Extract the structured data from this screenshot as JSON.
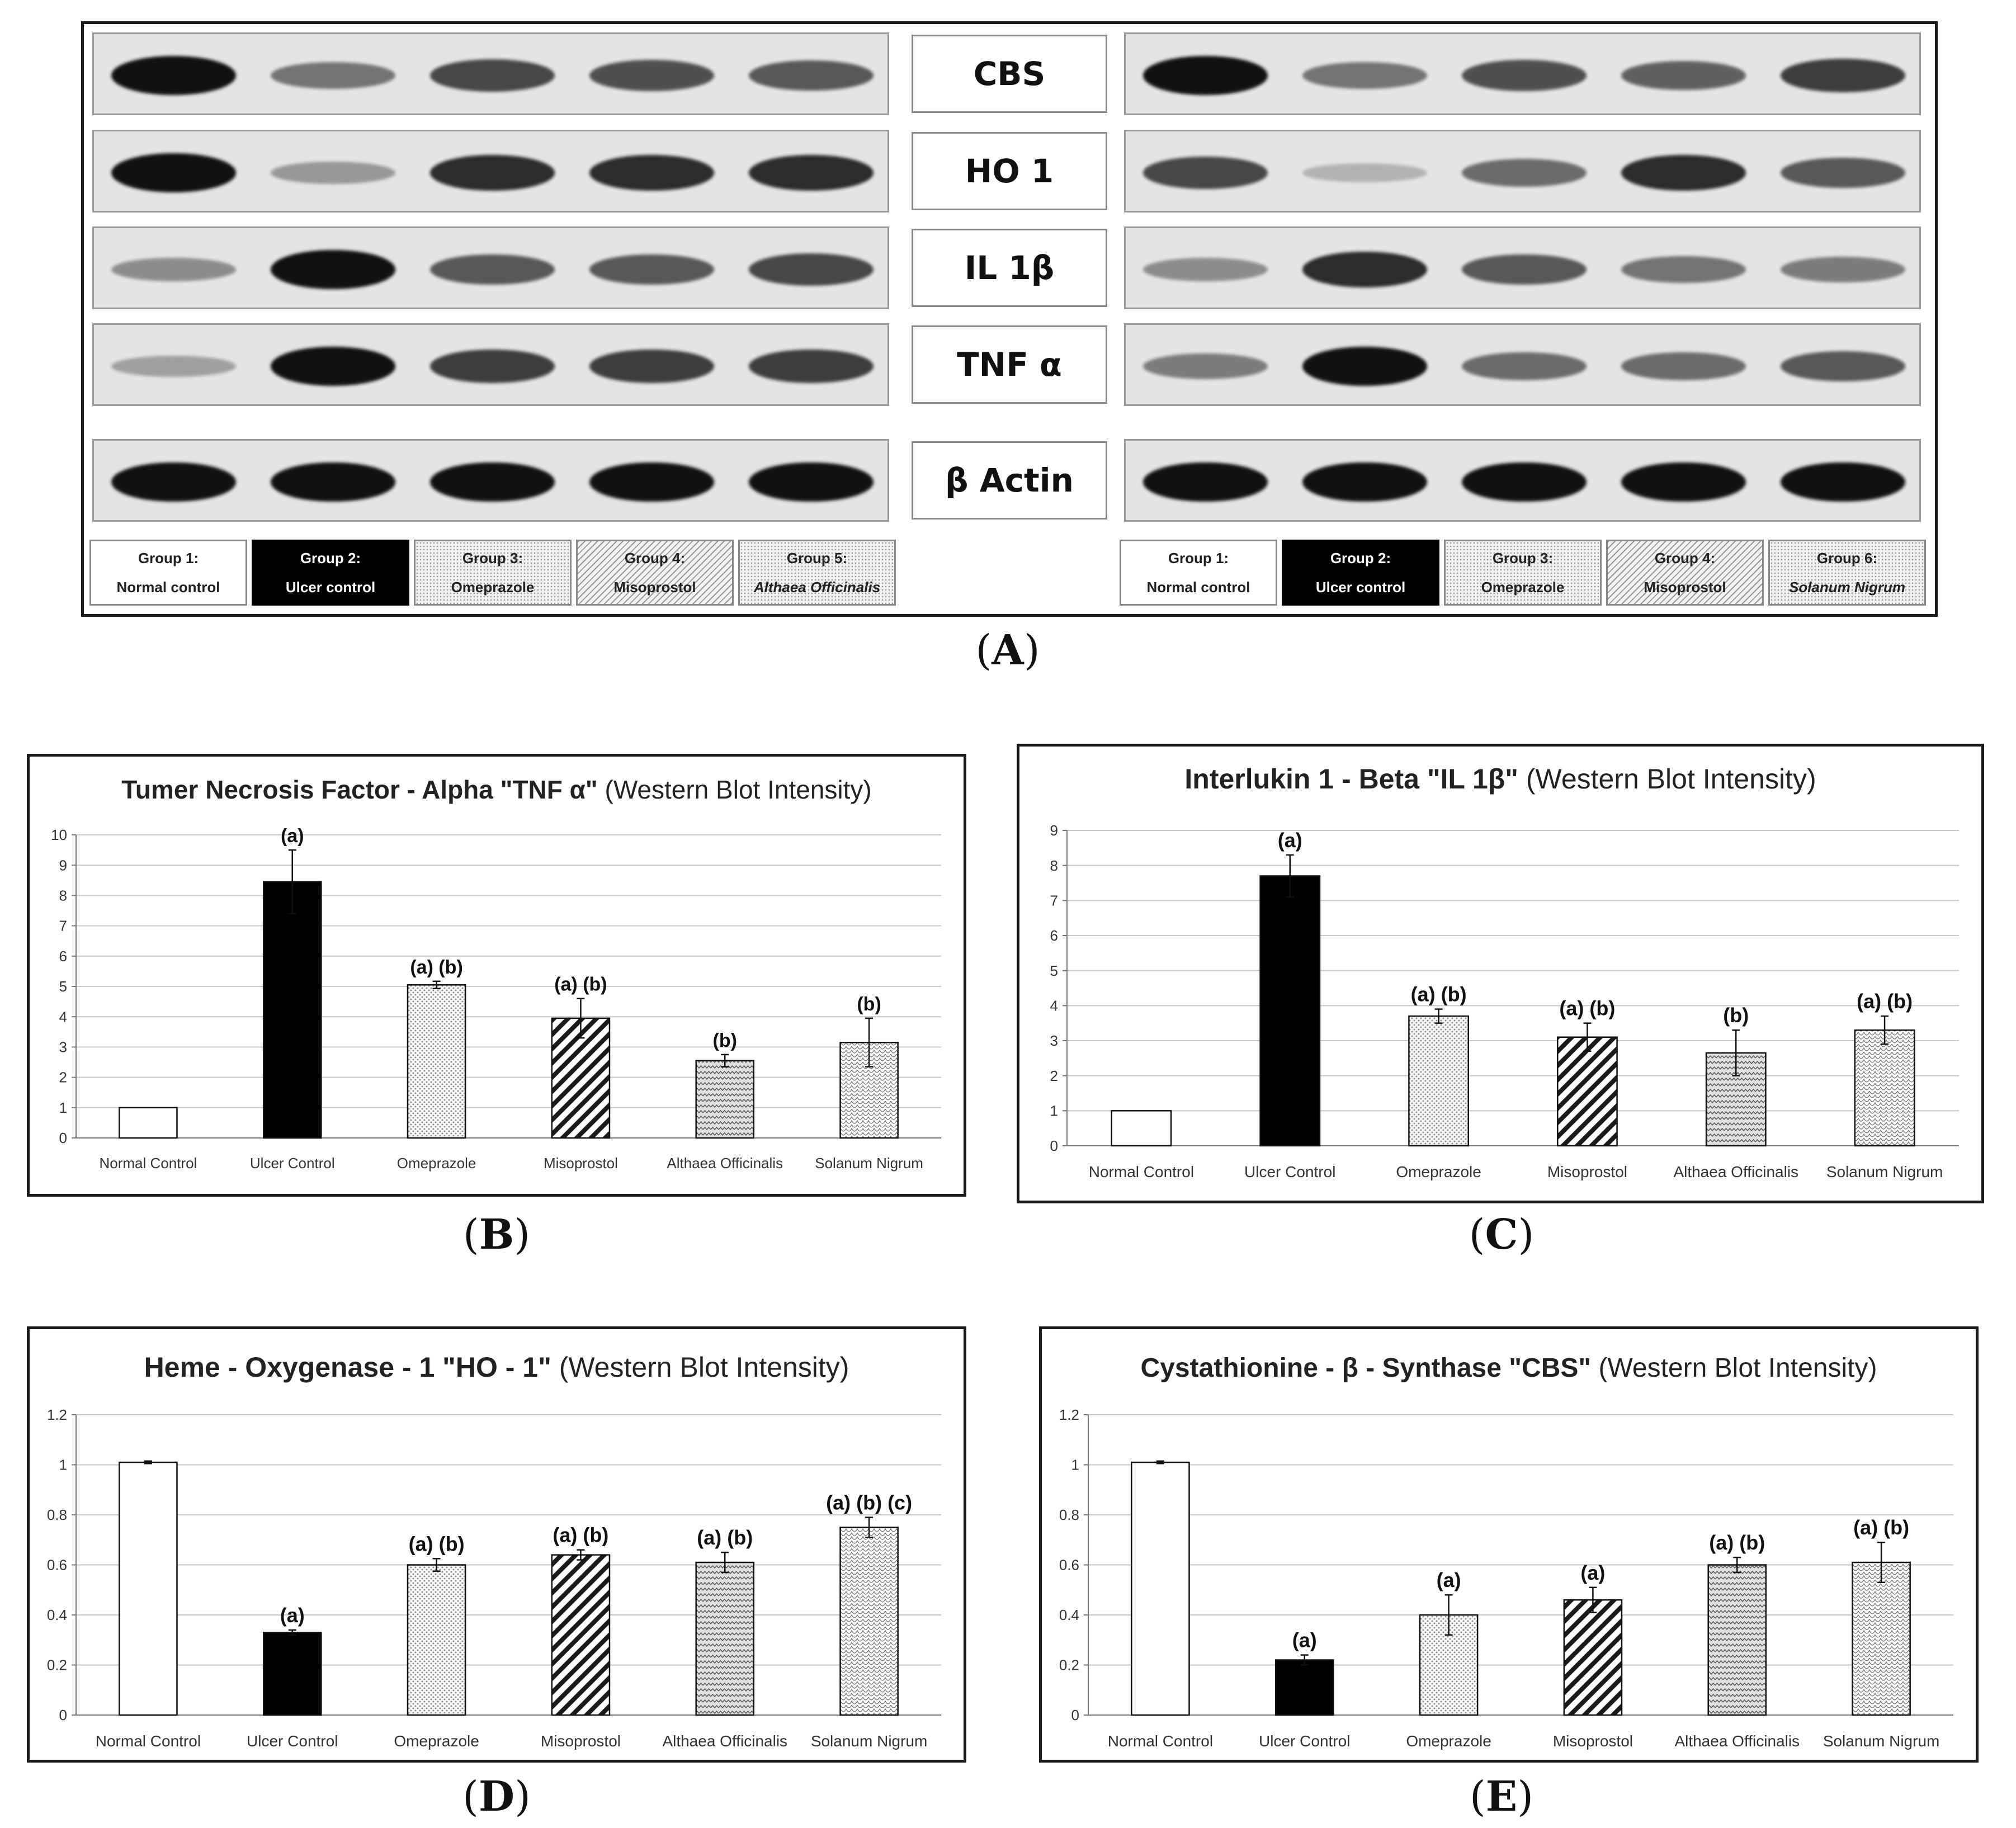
{
  "panel_a": {
    "caption": "A",
    "proteins": [
      "CBS",
      "HO 1",
      "IL 1β",
      "TNF α",
      "β Actin"
    ],
    "left_groups": [
      {
        "line1": "Group 1:",
        "line2": "Normal control",
        "style": "light"
      },
      {
        "line1": "Group 2:",
        "line2": "Ulcer control",
        "style": "dark"
      },
      {
        "line1": "Group 3:",
        "line2": "Omeprazole",
        "style": "dot"
      },
      {
        "line1": "Group 4:",
        "line2": "Misoprostol",
        "style": "diag"
      },
      {
        "line1": "Group 5:",
        "line2": "Althaea Officinalis",
        "style": "dot",
        "italic": true
      }
    ],
    "right_groups": [
      {
        "line1": "Group 1:",
        "line2": "Normal control",
        "style": "light"
      },
      {
        "line1": "Group 2:",
        "line2": "Ulcer control",
        "style": "dark"
      },
      {
        "line1": "Group 3:",
        "line2": "Omeprazole",
        "style": "dot"
      },
      {
        "line1": "Group 4:",
        "line2": "Misoprostol",
        "style": "diag"
      },
      {
        "line1": "Group 6:",
        "line2": "Solanum Nigrum",
        "style": "dot",
        "italic": true
      }
    ],
    "band_intensity_left": [
      [
        1.0,
        0.45,
        0.7,
        0.65,
        0.6
      ],
      [
        1.0,
        0.25,
        0.85,
        0.85,
        0.85
      ],
      [
        0.3,
        1.0,
        0.6,
        0.6,
        0.7
      ],
      [
        0.2,
        1.0,
        0.75,
        0.75,
        0.75
      ],
      [
        1.0,
        1.0,
        1.0,
        1.0,
        1.0
      ]
    ],
    "band_intensity_right": [
      [
        1.0,
        0.45,
        0.65,
        0.55,
        0.75
      ],
      [
        0.7,
        0.1,
        0.5,
        0.85,
        0.6
      ],
      [
        0.3,
        0.85,
        0.6,
        0.45,
        0.4
      ],
      [
        0.4,
        1.0,
        0.5,
        0.5,
        0.6
      ],
      [
        1.0,
        1.0,
        1.0,
        1.0,
        1.0
      ]
    ]
  },
  "chart_data": [
    {
      "panel": "B",
      "type": "bar",
      "title": "Tumer Necrosis Factor - Alpha \"TNF α\"",
      "title_suffix": "(Western Blot Intensity)",
      "categories": [
        "Normal Control",
        "Ulcer Control",
        "Omeprazole",
        "Misoprostol",
        "Althaea Officinalis",
        "Solanum Nigrum"
      ],
      "values": [
        1.0,
        8.45,
        5.05,
        3.95,
        2.55,
        3.15
      ],
      "errors": [
        0,
        1.05,
        0.12,
        0.65,
        0.2,
        0.8
      ],
      "annotations": [
        "",
        "(a)",
        "(a) (b)",
        "(a) (b)",
        "(b)",
        "(b)"
      ],
      "ylim": [
        0,
        10
      ],
      "yticks": [
        "0",
        "1",
        "2",
        "3",
        "4",
        "5",
        "6",
        "7",
        "8",
        "9",
        "10"
      ],
      "xlabel": "",
      "ylabel": "",
      "grid": true
    },
    {
      "panel": "C",
      "type": "bar",
      "title": "Interlukin 1 - Beta \"IL 1β\"",
      "title_suffix": "(Western Blot Intensity)",
      "categories": [
        "Normal Control",
        "Ulcer Control",
        "Omeprazole",
        "Misoprostol",
        "Althaea Officinalis",
        "Solanum Nigrum"
      ],
      "values": [
        1.0,
        7.7,
        3.7,
        3.1,
        2.65,
        3.3
      ],
      "errors": [
        0,
        0.6,
        0.2,
        0.4,
        0.65,
        0.4
      ],
      "annotations": [
        "",
        "(a)",
        "(a) (b)",
        "(a) (b)",
        "(b)",
        "(a) (b)"
      ],
      "ylim": [
        0,
        9
      ],
      "yticks": [
        "0",
        "1",
        "2",
        "3",
        "4",
        "5",
        "6",
        "7",
        "8",
        "9"
      ],
      "xlabel": "",
      "ylabel": "",
      "grid": true
    },
    {
      "panel": "D",
      "type": "bar",
      "title": "Heme - Oxygenase - 1 \"HO - 1\"",
      "title_suffix": "(Western Blot Intensity)",
      "categories": [
        "Normal Control",
        "Ulcer Control",
        "Omeprazole",
        "Misoprostol",
        "Althaea Officinalis",
        "Solanum Nigrum"
      ],
      "values": [
        1.01,
        0.33,
        0.6,
        0.64,
        0.61,
        0.75
      ],
      "errors": [
        0.005,
        0.01,
        0.025,
        0.02,
        0.04,
        0.04
      ],
      "annotations": [
        "",
        "(a)",
        "(a) (b)",
        "(a) (b)",
        "(a) (b)",
        "(a) (b) (c)"
      ],
      "ylim": [
        0,
        1.2
      ],
      "yticks": [
        "0",
        "0.2",
        "0.4",
        "0.6",
        "0.8",
        "1",
        "1.2"
      ],
      "xlabel": "",
      "ylabel": "",
      "grid": true
    },
    {
      "panel": "E",
      "type": "bar",
      "title": "Cystathionine - β - Synthase \"CBS\"",
      "title_suffix": "(Western Blot Intensity)",
      "categories": [
        "Normal Control",
        "Ulcer Control",
        "Omeprazole",
        "Misoprostol",
        "Althaea Officinalis",
        "Solanum Nigrum"
      ],
      "values": [
        1.01,
        0.22,
        0.4,
        0.46,
        0.6,
        0.61
      ],
      "errors": [
        0.005,
        0.02,
        0.08,
        0.05,
        0.03,
        0.08
      ],
      "annotations": [
        "",
        "(a)",
        "(a)",
        "(a)",
        "(a) (b)",
        "(a) (b)"
      ],
      "ylim": [
        0,
        1.2
      ],
      "yticks": [
        "0",
        "0.2",
        "0.4",
        "0.6",
        "0.8",
        "1",
        "1.2"
      ],
      "xlabel": "",
      "ylabel": "",
      "grid": true
    }
  ]
}
